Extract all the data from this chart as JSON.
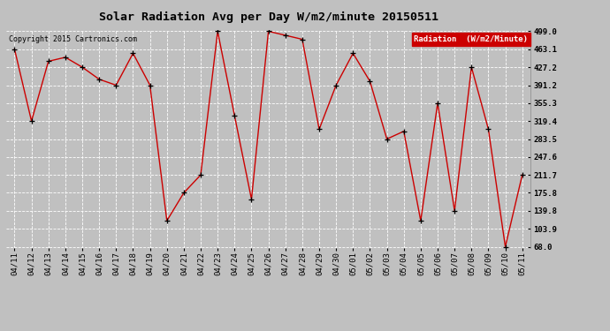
{
  "title": "Solar Radiation Avg per Day W/m2/minute 20150511",
  "copyright": "Copyright 2015 Cartronics.com",
  "legend_label": "Radiation  (W/m2/Minute)",
  "dates": [
    "04/11",
    "04/12",
    "04/13",
    "04/14",
    "04/15",
    "04/16",
    "04/17",
    "04/18",
    "04/19",
    "04/20",
    "04/21",
    "04/22",
    "04/23",
    "04/24",
    "04/25",
    "04/26",
    "04/27",
    "04/28",
    "04/29",
    "04/30",
    "05/01",
    "05/02",
    "05/03",
    "05/04",
    "05/05",
    "05/06",
    "05/07",
    "05/08",
    "05/09",
    "05/10",
    "05/11"
  ],
  "values": [
    463.1,
    319.4,
    439.0,
    447.0,
    427.2,
    403.0,
    391.2,
    455.0,
    391.2,
    120.0,
    175.8,
    211.7,
    499.0,
    330.0,
    163.0,
    499.0,
    491.0,
    483.0,
    303.0,
    391.2,
    455.0,
    399.0,
    283.5,
    299.0,
    120.0,
    355.3,
    140.0,
    427.2,
    303.0,
    68.0,
    211.7
  ],
  "ylim_min": 68.0,
  "ylim_max": 499.0,
  "yticks": [
    499.0,
    463.1,
    427.2,
    391.2,
    355.3,
    319.4,
    283.5,
    247.6,
    211.7,
    175.8,
    139.8,
    103.9,
    68.0
  ],
  "ytick_labels": [
    "499.0",
    "463.1",
    "427.2",
    "391.2",
    "355.3",
    "319.4",
    "283.5",
    "247.6",
    "211.7",
    "175.8",
    "139.8",
    "103.9",
    "68.0"
  ],
  "line_color": "#cc0000",
  "marker_color": "#000000",
  "bg_color": "#c0c0c0",
  "plot_bg_color": "#c0c0c0",
  "grid_color": "#ffffff",
  "title_fontsize": 9.5,
  "tick_fontsize": 6.5,
  "copyright_fontsize": 6.0,
  "legend_fontsize": 6.5
}
